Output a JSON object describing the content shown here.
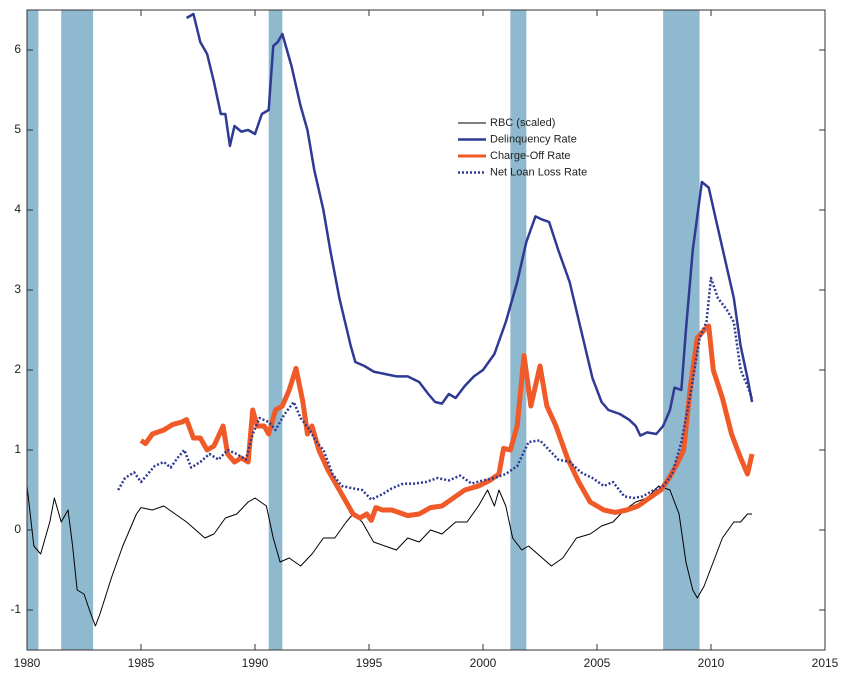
{
  "chart_data": {
    "type": "line",
    "xlim": [
      1980,
      2015
    ],
    "ylim": [
      -1.5,
      6.5
    ],
    "xticks": [
      1980,
      1985,
      1990,
      1995,
      2000,
      2005,
      2010,
      2015
    ],
    "yticks": [
      -1,
      0,
      1,
      2,
      3,
      4,
      5,
      6
    ],
    "legend_position": "upper center",
    "shade_color": "#8fb9cf",
    "shaded_periods": [
      [
        1980,
        1980.5
      ],
      [
        1981.5,
        1982.9
      ],
      [
        1990.6,
        1991.2
      ],
      [
        2001.2,
        2001.9
      ],
      [
        2007.9,
        2009.5
      ]
    ],
    "series": [
      {
        "name": "RBC (scaled)",
        "color": "#000000",
        "width": 1,
        "style": "solid",
        "x": [
          1980,
          1980.3,
          1980.6,
          1981,
          1981.2,
          1981.5,
          1981.8,
          1982,
          1982.2,
          1982.5,
          1982.8,
          1983,
          1983.2,
          1983.7,
          1984.2,
          1984.8,
          1985,
          1985.5,
          1986,
          1986.5,
          1987,
          1987.8,
          1988.2,
          1988.7,
          1989.2,
          1989.7,
          1990,
          1990.5,
          1990.8,
          1991.1,
          1991.5,
          1992,
          1992.5,
          1993,
          1993.5,
          1994,
          1994.3,
          1994.7,
          1995.2,
          1995.7,
          1996.2,
          1996.7,
          1997.2,
          1997.7,
          1998.2,
          1998.8,
          1999.3,
          1999.8,
          2000.2,
          2000.5,
          2000.7,
          2001,
          2001.3,
          2001.7,
          2002,
          2002.4,
          2003,
          2003.5,
          2004.1,
          2004.7,
          2005.2,
          2005.7,
          2006.2,
          2006.7,
          2007.2,
          2007.7,
          2008.2,
          2008.6,
          2008.9,
          2009.2,
          2009.4,
          2009.7,
          2010.1,
          2010.5,
          2011,
          2011.3,
          2011.6,
          2011.8
        ],
        "values": [
          0.55,
          -0.2,
          -0.3,
          0.1,
          0.4,
          0.1,
          0.25,
          -0.2,
          -0.75,
          -0.8,
          -1.05,
          -1.2,
          -1.05,
          -0.6,
          -0.2,
          0.2,
          0.28,
          0.25,
          0.3,
          0.2,
          0.1,
          -0.1,
          -0.05,
          0.15,
          0.2,
          0.35,
          0.4,
          0.3,
          -0.1,
          -0.4,
          -0.35,
          -0.45,
          -0.3,
          -0.1,
          -0.1,
          0.1,
          0.2,
          0.1,
          -0.15,
          -0.2,
          -0.25,
          -0.1,
          -0.15,
          0,
          -0.05,
          0.1,
          0.1,
          0.3,
          0.5,
          0.3,
          0.5,
          0.3,
          -0.1,
          -0.25,
          -0.2,
          -0.3,
          -0.45,
          -0.35,
          -0.1,
          -0.05,
          0.05,
          0.1,
          0.25,
          0.35,
          0.4,
          0.55,
          0.5,
          0.2,
          -0.4,
          -0.75,
          -0.85,
          -0.7,
          -0.4,
          -0.1,
          0.1,
          0.1,
          0.2,
          0.2
        ]
      },
      {
        "name": "Delinquency Rate",
        "color": "#2e3a93",
        "width": 2.5,
        "style": "solid",
        "x": [
          1987,
          1987.3,
          1987.6,
          1987.9,
          1988.2,
          1988.5,
          1988.7,
          1988.9,
          1989.1,
          1989.4,
          1989.7,
          1990,
          1990.3,
          1990.6,
          1990.8,
          1991,
          1991.2,
          1991.6,
          1992,
          1992.3,
          1992.6,
          1993,
          1993.3,
          1993.7,
          1994.2,
          1994.4,
          1994.8,
          1995.2,
          1995.7,
          1996.2,
          1996.7,
          1997.2,
          1997.6,
          1997.9,
          1998.2,
          1998.5,
          1998.8,
          1999.2,
          1999.6,
          2000,
          2000.5,
          2001,
          2001.5,
          2001.9,
          2002.3,
          2002.6,
          2002.9,
          2003.3,
          2003.8,
          2004.3,
          2004.8,
          2005.2,
          2005.5,
          2006,
          2006.4,
          2006.7,
          2006.9,
          2007.2,
          2007.6,
          2007.9,
          2008.2,
          2008.4,
          2008.7,
          2008.9,
          2009.2,
          2009.6,
          2009.9,
          2010.2,
          2010.6,
          2011,
          2011.3,
          2011.6,
          2011.8
        ],
        "values": [
          6.4,
          6.45,
          6.1,
          5.95,
          5.6,
          5.2,
          5.2,
          4.8,
          5.05,
          4.98,
          5.0,
          4.95,
          5.2,
          5.25,
          6.05,
          6.1,
          6.2,
          5.8,
          5.3,
          5.0,
          4.5,
          4.0,
          3.5,
          2.9,
          2.3,
          2.1,
          2.05,
          1.98,
          1.95,
          1.92,
          1.92,
          1.85,
          1.7,
          1.6,
          1.58,
          1.7,
          1.65,
          1.8,
          1.92,
          2.0,
          2.2,
          2.6,
          3.1,
          3.6,
          3.92,
          3.88,
          3.85,
          3.5,
          3.1,
          2.5,
          1.9,
          1.6,
          1.5,
          1.45,
          1.38,
          1.3,
          1.18,
          1.22,
          1.2,
          1.3,
          1.5,
          1.78,
          1.75,
          2.5,
          3.5,
          4.35,
          4.28,
          3.9,
          3.4,
          2.9,
          2.3,
          1.9,
          1.6
        ]
      },
      {
        "name": "Charge-Off Rate",
        "color": "#f05a28",
        "width": 5,
        "style": "solid",
        "x": [
          1985,
          1985.2,
          1985.5,
          1986,
          1986.4,
          1986.8,
          1987,
          1987.3,
          1987.6,
          1987.9,
          1988.2,
          1988.6,
          1988.8,
          1989.1,
          1989.4,
          1989.7,
          1989.9,
          1990.1,
          1990.4,
          1990.6,
          1990.9,
          1991.2,
          1991.5,
          1991.8,
          1992.1,
          1992.3,
          1992.5,
          1992.8,
          1993.2,
          1993.6,
          1994,
          1994.3,
          1994.6,
          1994.9,
          1995.1,
          1995.3,
          1995.6,
          1996,
          1996.3,
          1996.7,
          1997.2,
          1997.7,
          1998.2,
          1998.7,
          1999.2,
          1999.8,
          2000.3,
          2000.7,
          2000.9,
          2001.2,
          2001.5,
          2001.8,
          2002.1,
          2002.5,
          2002.8,
          2003.2,
          2003.7,
          2004.2,
          2004.7,
          2005.3,
          2005.8,
          2006.3,
          2006.8,
          2007.3,
          2007.8,
          2008.1,
          2008.5,
          2008.8,
          2009.1,
          2009.4,
          2009.7,
          2009.9,
          2010.1,
          2010.5,
          2010.9,
          2011.3,
          2011.6,
          2011.8
        ],
        "values": [
          1.12,
          1.08,
          1.2,
          1.25,
          1.32,
          1.35,
          1.38,
          1.15,
          1.15,
          1.0,
          1.05,
          1.3,
          0.95,
          0.85,
          0.9,
          0.85,
          1.5,
          1.3,
          1.3,
          1.2,
          1.5,
          1.55,
          1.75,
          2.02,
          1.6,
          1.2,
          1.3,
          1.0,
          0.75,
          0.55,
          0.35,
          0.2,
          0.15,
          0.2,
          0.12,
          0.28,
          0.25,
          0.25,
          0.22,
          0.18,
          0.2,
          0.28,
          0.3,
          0.4,
          0.5,
          0.55,
          0.62,
          0.7,
          1.02,
          1.0,
          1.3,
          2.18,
          1.55,
          2.05,
          1.55,
          1.3,
          0.9,
          0.6,
          0.35,
          0.25,
          0.22,
          0.25,
          0.3,
          0.4,
          0.5,
          0.62,
          0.82,
          1.0,
          1.8,
          2.4,
          2.5,
          2.55,
          2.0,
          1.65,
          1.2,
          0.9,
          0.7,
          0.95
        ]
      },
      {
        "name": "Net Loan Loss Rate",
        "color": "#2e3a93",
        "width": 2.5,
        "style": "dotted",
        "x": [
          1984,
          1984.3,
          1984.7,
          1985,
          1985.3,
          1985.6,
          1986,
          1986.3,
          1986.6,
          1986.9,
          1987.2,
          1987.6,
          1988,
          1988.4,
          1988.8,
          1989.2,
          1989.6,
          1989.9,
          1990.2,
          1990.6,
          1990.9,
          1991.3,
          1991.7,
          1992,
          1992.4,
          1992.7,
          1993,
          1993.4,
          1993.8,
          1994.3,
          1994.7,
          1995.1,
          1995.6,
          1996,
          1996.5,
          1997,
          1997.5,
          1998,
          1998.5,
          1999,
          1999.5,
          2000,
          2000.5,
          2001,
          2001.5,
          2002,
          2002.5,
          2002.9,
          2003.3,
          2003.8,
          2004.3,
          2004.8,
          2005.3,
          2005.7,
          2006.2,
          2006.6,
          2007,
          2007.5,
          2007.9,
          2008.3,
          2008.7,
          2009.1,
          2009.5,
          2009.8,
          2010,
          2010.3,
          2010.7,
          2011,
          2011.3,
          2011.6,
          2011.8
        ],
        "values": [
          0.5,
          0.65,
          0.72,
          0.6,
          0.7,
          0.8,
          0.85,
          0.78,
          0.9,
          1.0,
          0.78,
          0.85,
          0.95,
          0.88,
          1.0,
          0.95,
          0.88,
          1.2,
          1.4,
          1.35,
          1.25,
          1.45,
          1.6,
          1.4,
          1.25,
          1.1,
          1.0,
          0.7,
          0.55,
          0.52,
          0.5,
          0.38,
          0.45,
          0.52,
          0.58,
          0.58,
          0.6,
          0.65,
          0.62,
          0.68,
          0.58,
          0.62,
          0.65,
          0.7,
          0.8,
          1.1,
          1.12,
          1.0,
          0.88,
          0.85,
          0.72,
          0.65,
          0.55,
          0.6,
          0.42,
          0.4,
          0.42,
          0.5,
          0.55,
          0.7,
          1.1,
          1.7,
          2.4,
          2.6,
          3.15,
          2.9,
          2.75,
          2.6,
          2.0,
          1.8,
          1.65
        ]
      }
    ]
  }
}
